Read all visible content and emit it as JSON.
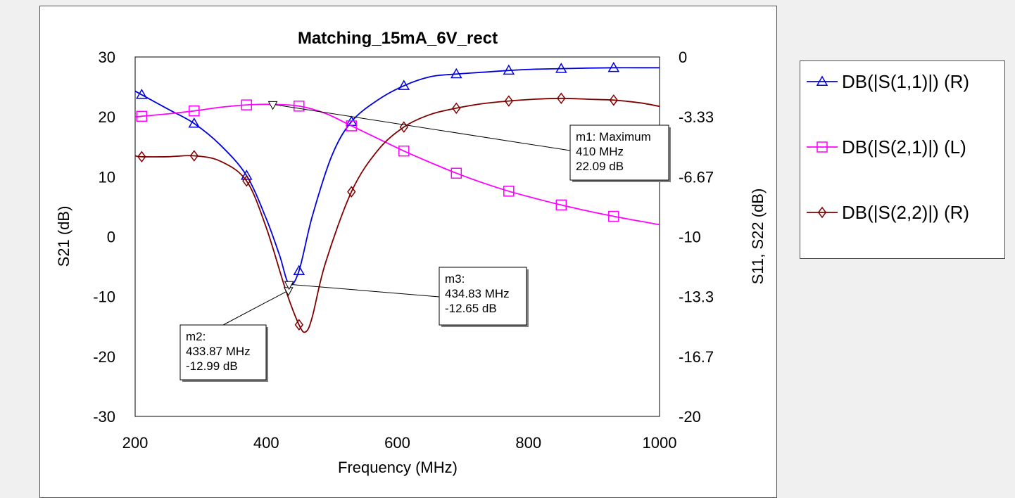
{
  "chart_data": {
    "type": "line",
    "title": "Matching_15mA_6V_rect",
    "xlabel": "Frequency (MHz)",
    "ylabel_left": "S21 (dB)",
    "ylabel_right": "S11, S22 (dB)",
    "xlim": [
      200,
      1000
    ],
    "ylim_left": [
      -30,
      30
    ],
    "ylim_right": [
      -20,
      0
    ],
    "x_ticks": [
      "200",
      "400",
      "600",
      "800",
      "1000"
    ],
    "y_ticks_left": [
      "30",
      "20",
      "10",
      "0",
      "-10",
      "-20",
      "-30"
    ],
    "y_ticks_right": [
      "0",
      "-3.33",
      "-6.67",
      "-10",
      "-13.3",
      "-16.7",
      "-20"
    ],
    "grid": false,
    "legend_position": "right",
    "series": [
      {
        "name": "DB(|S(1,1)|) (R)",
        "axis": "right",
        "color": "#0000e0",
        "marker": "triangle",
        "x": [
          200,
          210,
          250,
          290,
          330,
          370,
          400,
          420,
          435,
          450,
          470,
          500,
          530,
          570,
          610,
          650,
          690,
          730,
          770,
          810,
          850,
          890,
          930,
          970,
          1000
        ],
        "y": [
          -1.9,
          -2.1,
          -2.9,
          -3.7,
          -4.9,
          -6.6,
          -9.0,
          -11.0,
          -12.65,
          -11.9,
          -8.9,
          -5.5,
          -3.6,
          -2.4,
          -1.6,
          -1.1,
          -0.95,
          -0.85,
          -0.75,
          -0.68,
          -0.65,
          -0.62,
          -0.6,
          -0.6,
          -0.6
        ],
        "marker_x": [
          210,
          290,
          370,
          450,
          530,
          610,
          690,
          770,
          850,
          930
        ]
      },
      {
        "name": "DB(|S(2,1)|) (L)",
        "axis": "left",
        "color": "#ff00ff",
        "marker": "square",
        "x": [
          200,
          210,
          250,
          290,
          330,
          370,
          410,
          450,
          490,
          530,
          570,
          610,
          650,
          690,
          730,
          770,
          810,
          850,
          890,
          930,
          970,
          1000
        ],
        "y": [
          20.0,
          20.1,
          20.5,
          21.0,
          21.6,
          22.0,
          22.09,
          21.8,
          20.6,
          18.5,
          16.4,
          14.3,
          12.4,
          10.6,
          9.0,
          7.6,
          6.4,
          5.3,
          4.3,
          3.4,
          2.6,
          2.0
        ],
        "marker_x": [
          210,
          290,
          370,
          450,
          530,
          610,
          690,
          770,
          850,
          930
        ]
      },
      {
        "name": "DB(|S(2,2)|) (R)",
        "axis": "right",
        "color": "#800000",
        "marker": "diamond",
        "x": [
          200,
          210,
          250,
          290,
          330,
          370,
          400,
          430,
          450,
          460,
          470,
          490,
          530,
          570,
          610,
          650,
          690,
          730,
          770,
          810,
          850,
          890,
          930,
          970,
          1000
        ],
        "y": [
          -5.5,
          -5.55,
          -5.55,
          -5.5,
          -5.8,
          -6.9,
          -9.5,
          -13.0,
          -14.9,
          -15.3,
          -14.5,
          -11.5,
          -7.5,
          -5.2,
          -3.9,
          -3.2,
          -2.85,
          -2.6,
          -2.45,
          -2.35,
          -2.3,
          -2.35,
          -2.4,
          -2.55,
          -2.75
        ],
        "marker_x": [
          210,
          290,
          370,
          450,
          530,
          610,
          690,
          770,
          850,
          930
        ]
      }
    ],
    "markers": [
      {
        "name": "m1",
        "line1": "m1: Maximum",
        "line2": "410 MHz",
        "line3": "22.09 dB",
        "x": 410,
        "y": 22.09,
        "axis": "left"
      },
      {
        "name": "m2",
        "line1": "m2:",
        "line2": "433.87 MHz",
        "line3": "-12.99 dB",
        "x": 433.87,
        "y": -12.99,
        "axis": "right"
      },
      {
        "name": "m3",
        "line1": "m3:",
        "line2": "434.83 MHz",
        "line3": "-12.65 dB",
        "x": 434.83,
        "y": -12.65,
        "axis": "right"
      }
    ]
  }
}
